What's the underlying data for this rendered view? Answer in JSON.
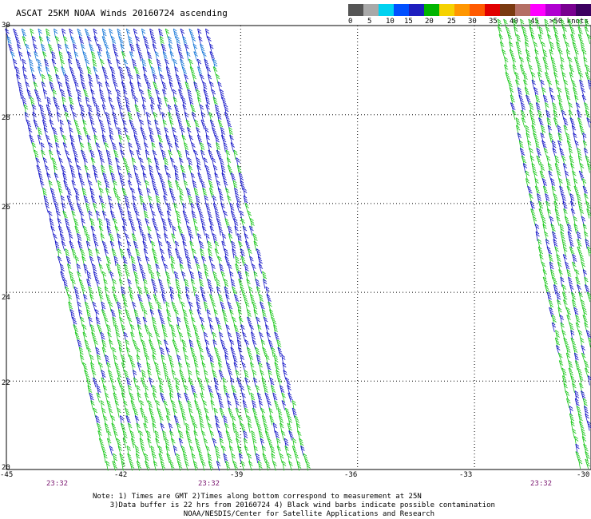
{
  "title": "ASCAT 25KM NOAA Winds 20160724 ascending",
  "legend": {
    "colors": [
      "#555555",
      "#a9a9a9",
      "#00d2f0",
      "#0050ff",
      "#1e1ebe",
      "#00b400",
      "#f5d200",
      "#ff9600",
      "#ff5a00",
      "#e10000",
      "#7a3a10",
      "#b46e64",
      "#ff00ff",
      "#b000d0",
      "#780090",
      "#3c0060"
    ],
    "labels": [
      "0",
      "5",
      "10",
      "15",
      "20",
      "25",
      "30",
      "35",
      "40",
      "45",
      ">50 knots"
    ]
  },
  "axes": {
    "lon_labels": [
      "-45",
      "-42",
      "-39",
      "-36",
      "-33",
      "-30"
    ],
    "lat_labels": [
      "30",
      "28",
      "26",
      "24",
      "22",
      "20"
    ]
  },
  "time_labels": [
    "23:32",
    "23:32",
    "23:32"
  ],
  "notes": [
    "Note: 1) Times are GMT 2)Times along bottom correspond to measurement at 25N",
    "3)Data buffer is 22 hrs from 20160724 4) Black wind barbs indicate possible contamination",
    "NOAA/NESDIS/Center for Satellite Applications and Research"
  ],
  "swaths": [
    {
      "name": "left-swath",
      "lon_range": [
        -45,
        -38.5
      ],
      "lat_range": [
        20,
        30
      ],
      "wind_knots": [
        10,
        25
      ]
    },
    {
      "name": "right-swath",
      "lon_range": [
        -32.3,
        -30
      ],
      "lat_range": [
        20,
        30
      ],
      "wind_knots": [
        15,
        25
      ]
    }
  ]
}
